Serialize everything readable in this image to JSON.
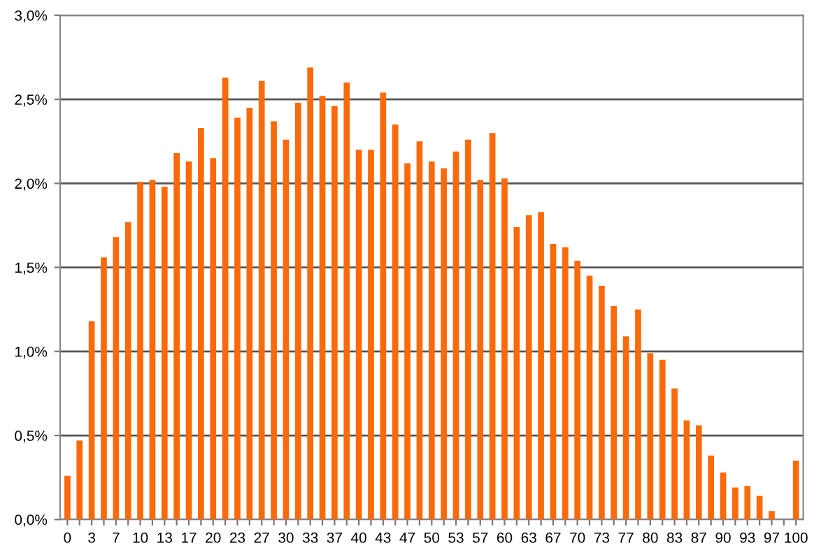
{
  "chart_data": {
    "type": "bar",
    "categories": [
      "0",
      null,
      "3",
      null,
      "7",
      null,
      "10",
      null,
      "13",
      null,
      "17",
      null,
      "20",
      null,
      "23",
      null,
      "27",
      null,
      "30",
      null,
      "33",
      null,
      "37",
      null,
      "40",
      null,
      "43",
      null,
      "47",
      null,
      "50",
      null,
      "53",
      null,
      "57",
      null,
      "60",
      null,
      "63",
      null,
      "67",
      null,
      "70",
      null,
      "73",
      null,
      "77",
      null,
      "80",
      null,
      "83",
      null,
      "87",
      null,
      "90",
      null,
      "93",
      null,
      "97",
      null,
      "100"
    ],
    "values": [
      0.26,
      0.47,
      1.18,
      1.56,
      1.68,
      1.77,
      2.01,
      2.02,
      1.98,
      2.18,
      2.13,
      2.33,
      2.15,
      2.63,
      2.39,
      2.45,
      2.61,
      2.37,
      2.26,
      2.48,
      2.69,
      2.52,
      2.46,
      2.6,
      2.2,
      2.2,
      2.54,
      2.35,
      2.12,
      2.25,
      2.13,
      2.09,
      2.19,
      2.26,
      2.02,
      2.3,
      2.03,
      1.74,
      1.81,
      1.83,
      1.64,
      1.62,
      1.54,
      1.45,
      1.39,
      1.27,
      1.09,
      1.25,
      0.99,
      0.95,
      0.78,
      0.59,
      0.56,
      0.38,
      0.28,
      0.19,
      0.2,
      0.14,
      0.05,
      0,
      0.35
    ],
    "color": "#fa6a0a",
    "ylim": [
      0,
      3
    ],
    "yticks": [
      {
        "value": 0,
        "label": "0,0%"
      },
      {
        "value": 0.5,
        "label": "0,5%"
      },
      {
        "value": 1,
        "label": "1,0%"
      },
      {
        "value": 1.5,
        "label": "1,5%"
      },
      {
        "value": 2,
        "label": "2,0%"
      },
      {
        "value": 2.5,
        "label": "2,5%"
      },
      {
        "value": 3,
        "label": "3,0%"
      }
    ],
    "grid": "y"
  }
}
